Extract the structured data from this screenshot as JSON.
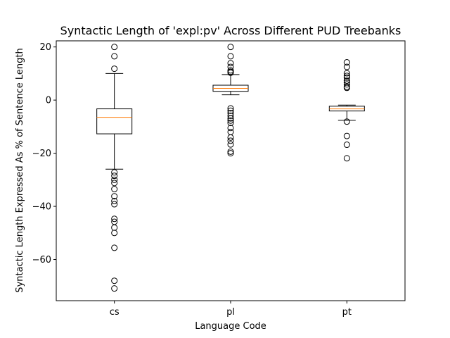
{
  "chart_data": {
    "type": "box",
    "title": "Syntactic Length of 'expl:pv' Across Different PUD Treebanks",
    "xlabel": "Language Code",
    "ylabel": "Syntactic Length Expressed As % of Sentence Length",
    "ylim": [
      -75.5,
      22.3
    ],
    "yticks": [
      20,
      0,
      -20,
      -40,
      -60
    ],
    "ytick_labels": [
      "20",
      "0",
      "−20",
      "−40",
      "−60"
    ],
    "grid": false,
    "categories": [
      "cs",
      "pl",
      "pt"
    ],
    "boxes": [
      {
        "category": "cs",
        "whisker_low": -26,
        "q1": -12.7,
        "median": -6.5,
        "q3": -3.3,
        "whisker_high": 10,
        "outliers": [
          20,
          16.5,
          11.8,
          -27.2,
          -28.5,
          -30,
          -31.2,
          -33.5,
          -36.2,
          -38,
          -39.2,
          -44.7,
          -45.8,
          -48,
          -50,
          -55.6,
          -68,
          -70.9
        ]
      },
      {
        "category": "pl",
        "whisker_low": 2,
        "q1": 3.3,
        "median": 4.4,
        "q3": 5.6,
        "whisker_high": 9.6,
        "outliers": [
          20,
          16.5,
          13.9,
          12.5,
          11.2,
          10.7,
          10.3,
          -3.1,
          -4,
          -4.9,
          -5.9,
          -6.9,
          -7.7,
          -8.6,
          -10.5,
          -12,
          -14.1,
          -15.3,
          -16.7,
          -19.4,
          -20
        ]
      },
      {
        "category": "pt",
        "whisker_low": -7.6,
        "q1": -4.1,
        "median": -3.3,
        "q3": -2.3,
        "whisker_high": -1.9,
        "outliers": [
          14.2,
          12.5,
          10.1,
          9.1,
          8.5,
          7.3,
          6.6,
          5.9,
          5,
          4.6,
          -8.1,
          -13.5,
          -16.8,
          -21.9
        ]
      }
    ],
    "colors": {
      "box": "#000000",
      "median": "#ff7f0e",
      "outlier": "#000000",
      "background": "#ffffff"
    }
  }
}
